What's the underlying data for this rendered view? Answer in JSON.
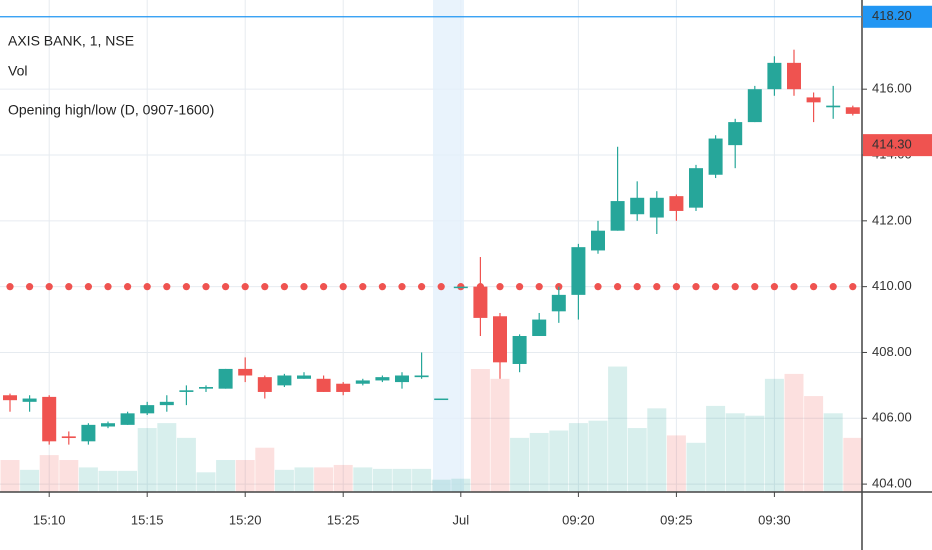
{
  "chart_data": {
    "type": "candlestick",
    "title": "AXIS BANK, 1, NSE",
    "legend_items": [
      "Vol",
      "Opening high/low (D, 0907-1600)"
    ],
    "categories": [
      null,
      null,
      "15:10",
      null,
      null,
      null,
      null,
      "15:15",
      null,
      null,
      null,
      null,
      "15:20",
      null,
      null,
      null,
      null,
      "15:25",
      null,
      null,
      null,
      null,
      null,
      "Jul",
      null,
      null,
      null,
      null,
      null,
      "09:20",
      null,
      null,
      null,
      null,
      "09:25",
      null,
      null,
      null,
      null,
      "09:30",
      null,
      null,
      null,
      null
    ],
    "open": [
      406.7,
      406.5,
      406.65,
      405.45,
      405.3,
      405.75,
      405.8,
      406.15,
      406.4,
      406.8,
      406.9,
      406.9,
      407.5,
      407.25,
      407.0,
      407.2,
      407.2,
      407.05,
      407.05,
      407.15,
      407.1,
      407.25,
      406.6,
      410.0,
      410.0,
      409.1,
      407.65,
      408.5,
      409.25,
      409.75,
      411.1,
      411.7,
      412.2,
      412.1,
      412.75,
      412.4,
      413.4,
      414.3,
      415.0,
      416.0,
      416.8,
      415.75,
      415.45,
      415.45
    ],
    "high": [
      406.75,
      406.7,
      406.7,
      405.6,
      405.85,
      405.9,
      406.2,
      406.5,
      406.7,
      407.0,
      407.0,
      407.5,
      407.85,
      407.3,
      407.35,
      407.4,
      407.3,
      407.1,
      407.2,
      407.3,
      407.4,
      408.0,
      406.6,
      410.0,
      410.9,
      409.2,
      408.55,
      409.2,
      410.0,
      411.3,
      412.0,
      414.25,
      413.2,
      412.9,
      412.8,
      413.7,
      414.6,
      415.1,
      416.1,
      417.0,
      417.2,
      415.9,
      416.1,
      415.5
    ],
    "low": [
      406.2,
      406.2,
      405.2,
      405.2,
      405.2,
      405.7,
      405.8,
      406.1,
      406.2,
      406.4,
      406.8,
      406.9,
      407.1,
      406.6,
      406.95,
      407.2,
      406.8,
      406.7,
      407.0,
      407.1,
      406.9,
      407.2,
      406.6,
      410.0,
      408.5,
      407.2,
      407.4,
      408.5,
      408.9,
      409.0,
      411.0,
      411.7,
      412.0,
      411.6,
      412.0,
      412.3,
      413.3,
      413.6,
      415.0,
      415.8,
      415.8,
      415.0,
      415.1,
      415.2
    ],
    "close": [
      406.55,
      406.6,
      405.3,
      405.4,
      405.8,
      405.85,
      406.15,
      406.4,
      406.5,
      406.85,
      406.95,
      407.5,
      407.3,
      406.8,
      407.3,
      407.3,
      406.8,
      406.8,
      407.15,
      407.25,
      407.3,
      407.3,
      406.6,
      410.0,
      409.05,
      407.7,
      408.5,
      409.0,
      409.75,
      411.2,
      411.7,
      412.6,
      412.7,
      412.7,
      412.3,
      413.6,
      414.5,
      415.0,
      416.0,
      416.8,
      416.0,
      415.6,
      415.5,
      415.25
    ],
    "volume": [
      6.5,
      4.5,
      7.5,
      6.5,
      5,
      4.3,
      4.3,
      13,
      14,
      11,
      4,
      6.5,
      6.5,
      9,
      4.5,
      5,
      5,
      5.5,
      5,
      4.7,
      4.7,
      4.7,
      2.5,
      2.7,
      25,
      23,
      11,
      12,
      12.5,
      14,
      14.5,
      25.5,
      13,
      17,
      11.5,
      10,
      17.5,
      16,
      15.5,
      23,
      24,
      19.5,
      16,
      11
    ],
    "volume_ylim": [
      0,
      100
    ],
    "up_color": "#26a69a",
    "down_color": "#ef5350",
    "opening_level": 410,
    "opening_level_color": "#ef5350",
    "price_lines": [
      {
        "value": 418.2,
        "label": "418.20",
        "color": "#2196f3"
      },
      {
        "value": 414.3,
        "label": "414.30",
        "color": "#ef5350"
      }
    ],
    "ylim": [
      403.76,
      418.71
    ],
    "yticks": [
      {
        "value": 404,
        "label": "404.00"
      },
      {
        "value": 406,
        "label": "406.00"
      },
      {
        "value": 408,
        "label": "408.00"
      },
      {
        "value": 410,
        "label": "410.00"
      },
      {
        "value": 412,
        "label": "412.00"
      },
      {
        "value": 414,
        "label": "414.00"
      },
      {
        "value": 416,
        "label": "416.00"
      }
    ],
    "grid": true
  }
}
